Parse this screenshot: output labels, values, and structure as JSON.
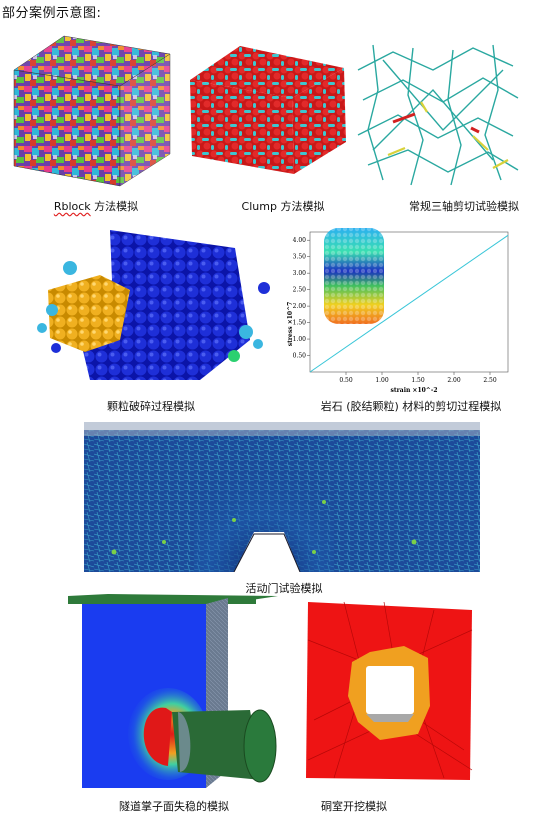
{
  "heading": "部分案例示意图:",
  "captions": {
    "rblock_word": "Rblock",
    "rblock_rest": " 方法模拟",
    "clump": "Clump 方法模拟",
    "triaxial": "常规三轴剪切试验模拟",
    "crushing": "颗粒破碎过程模拟",
    "rock_shear": "岩石 (胶结颗粒) 材料的剪切过程模拟",
    "trapdoor": "活动门试验模拟",
    "tunnel_face": "隧道掌子面失稳的模拟",
    "chamber": "硐室开挖模拟"
  },
  "chart_data": {
    "type": "line",
    "xlabel": "strain ×10^-2",
    "ylabel": "stress ×10^7",
    "x_ticks": [
      "0.50",
      "1.00",
      "1.50",
      "2.00",
      "2.50"
    ],
    "y_ticks": [
      "0.50",
      "1.00",
      "1.50",
      "2.00",
      "2.50",
      "3.00",
      "3.50",
      "4.00"
    ],
    "xlim": [
      0,
      2.75
    ],
    "ylim": [
      0,
      4.25
    ],
    "series": [
      {
        "x": [
          0,
          2.75
        ],
        "y": [
          0,
          4.15
        ],
        "color": "#39c6d8"
      }
    ]
  }
}
